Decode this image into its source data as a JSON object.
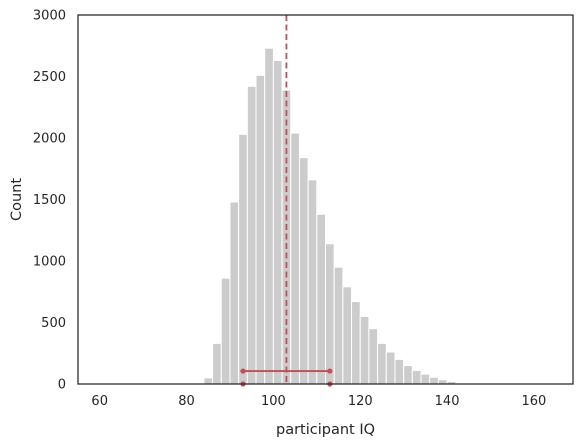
{
  "chart_data": {
    "type": "bar",
    "title": "",
    "xlabel": "participant IQ",
    "ylabel": "Count",
    "xlim": [
      55,
      169
    ],
    "ylim": [
      0,
      3000
    ],
    "x_ticks": [
      60,
      80,
      100,
      120,
      140,
      160
    ],
    "y_ticks": [
      0,
      500,
      1000,
      1500,
      2000,
      2500,
      3000
    ],
    "grid": false,
    "bin_width": 2,
    "bin_edges_start": 84,
    "counts": [
      50,
      330,
      860,
      1480,
      2030,
      2420,
      2510,
      2730,
      2630,
      2390,
      2040,
      1840,
      1660,
      1380,
      1140,
      950,
      790,
      670,
      550,
      450,
      330,
      260,
      200,
      150,
      110,
      80,
      55,
      35,
      20
    ],
    "colors": {
      "bars": "#cccccc",
      "bar_edge": "#ffffff",
      "mean_line": "#c44e52",
      "interval": "#c44e52",
      "axes": "#262626"
    },
    "mean_line": {
      "x": 103
    },
    "interval": {
      "low": 93,
      "high": 113,
      "y": 105
    }
  }
}
